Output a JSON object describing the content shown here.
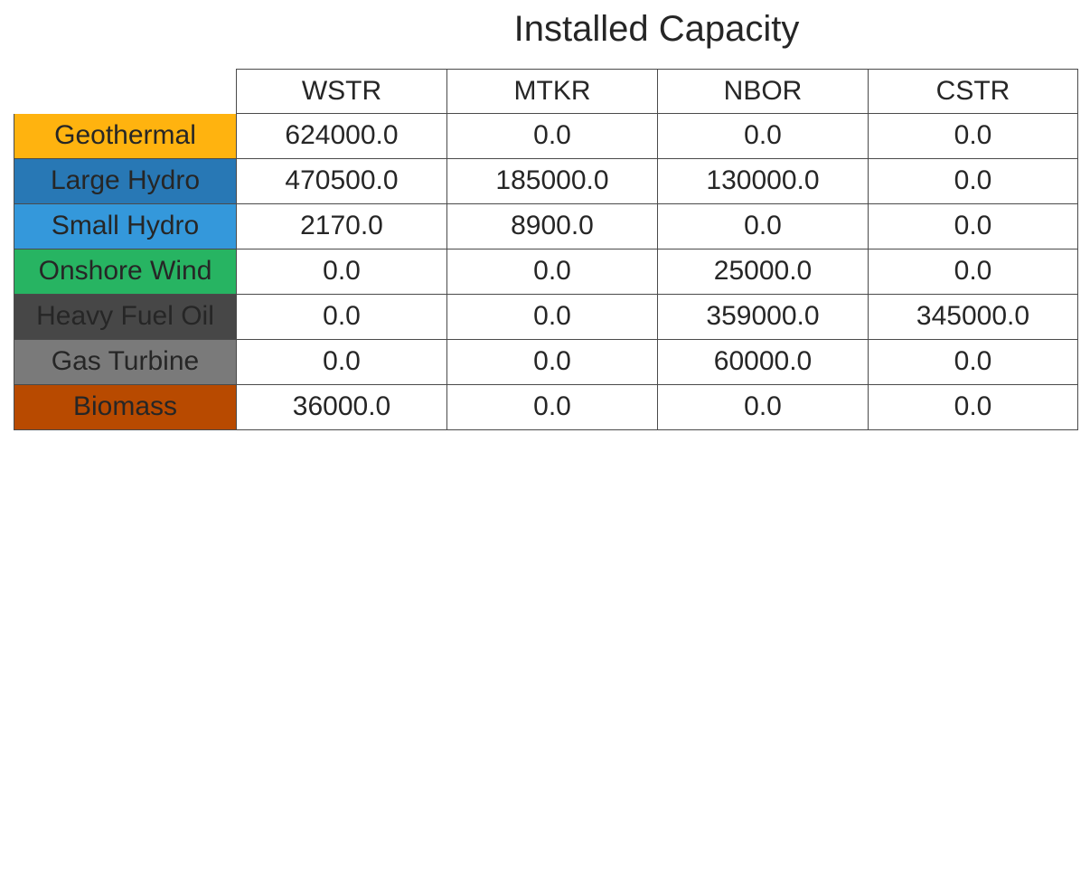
{
  "chart_data": {
    "type": "table",
    "title": "Installed Capacity",
    "columns": [
      "WSTR",
      "MTKR",
      "NBOR",
      "CSTR"
    ],
    "rows": [
      {
        "label": "Geothermal",
        "color": "#ffb30f",
        "values": [
          "624000.0",
          "0.0",
          "0.0",
          "0.0"
        ]
      },
      {
        "label": "Large Hydro",
        "color": "#2878b5",
        "values": [
          "470500.0",
          "185000.0",
          "130000.0",
          "0.0"
        ]
      },
      {
        "label": "Small Hydro",
        "color": "#3498db",
        "values": [
          "2170.0",
          "8900.0",
          "0.0",
          "0.0"
        ]
      },
      {
        "label": "Onshore Wind",
        "color": "#27b462",
        "values": [
          "0.0",
          "0.0",
          "25000.0",
          "0.0"
        ]
      },
      {
        "label": "Heavy Fuel Oil",
        "color": "#474747",
        "values": [
          "0.0",
          "0.0",
          "359000.0",
          "345000.0"
        ]
      },
      {
        "label": "Gas Turbine",
        "color": "#7a7a7a",
        "values": [
          "0.0",
          "0.0",
          "60000.0",
          "0.0"
        ]
      },
      {
        "label": "Biomass",
        "color": "#b84a00",
        "values": [
          "36000.0",
          "0.0",
          "0.0",
          "0.0"
        ]
      }
    ]
  }
}
